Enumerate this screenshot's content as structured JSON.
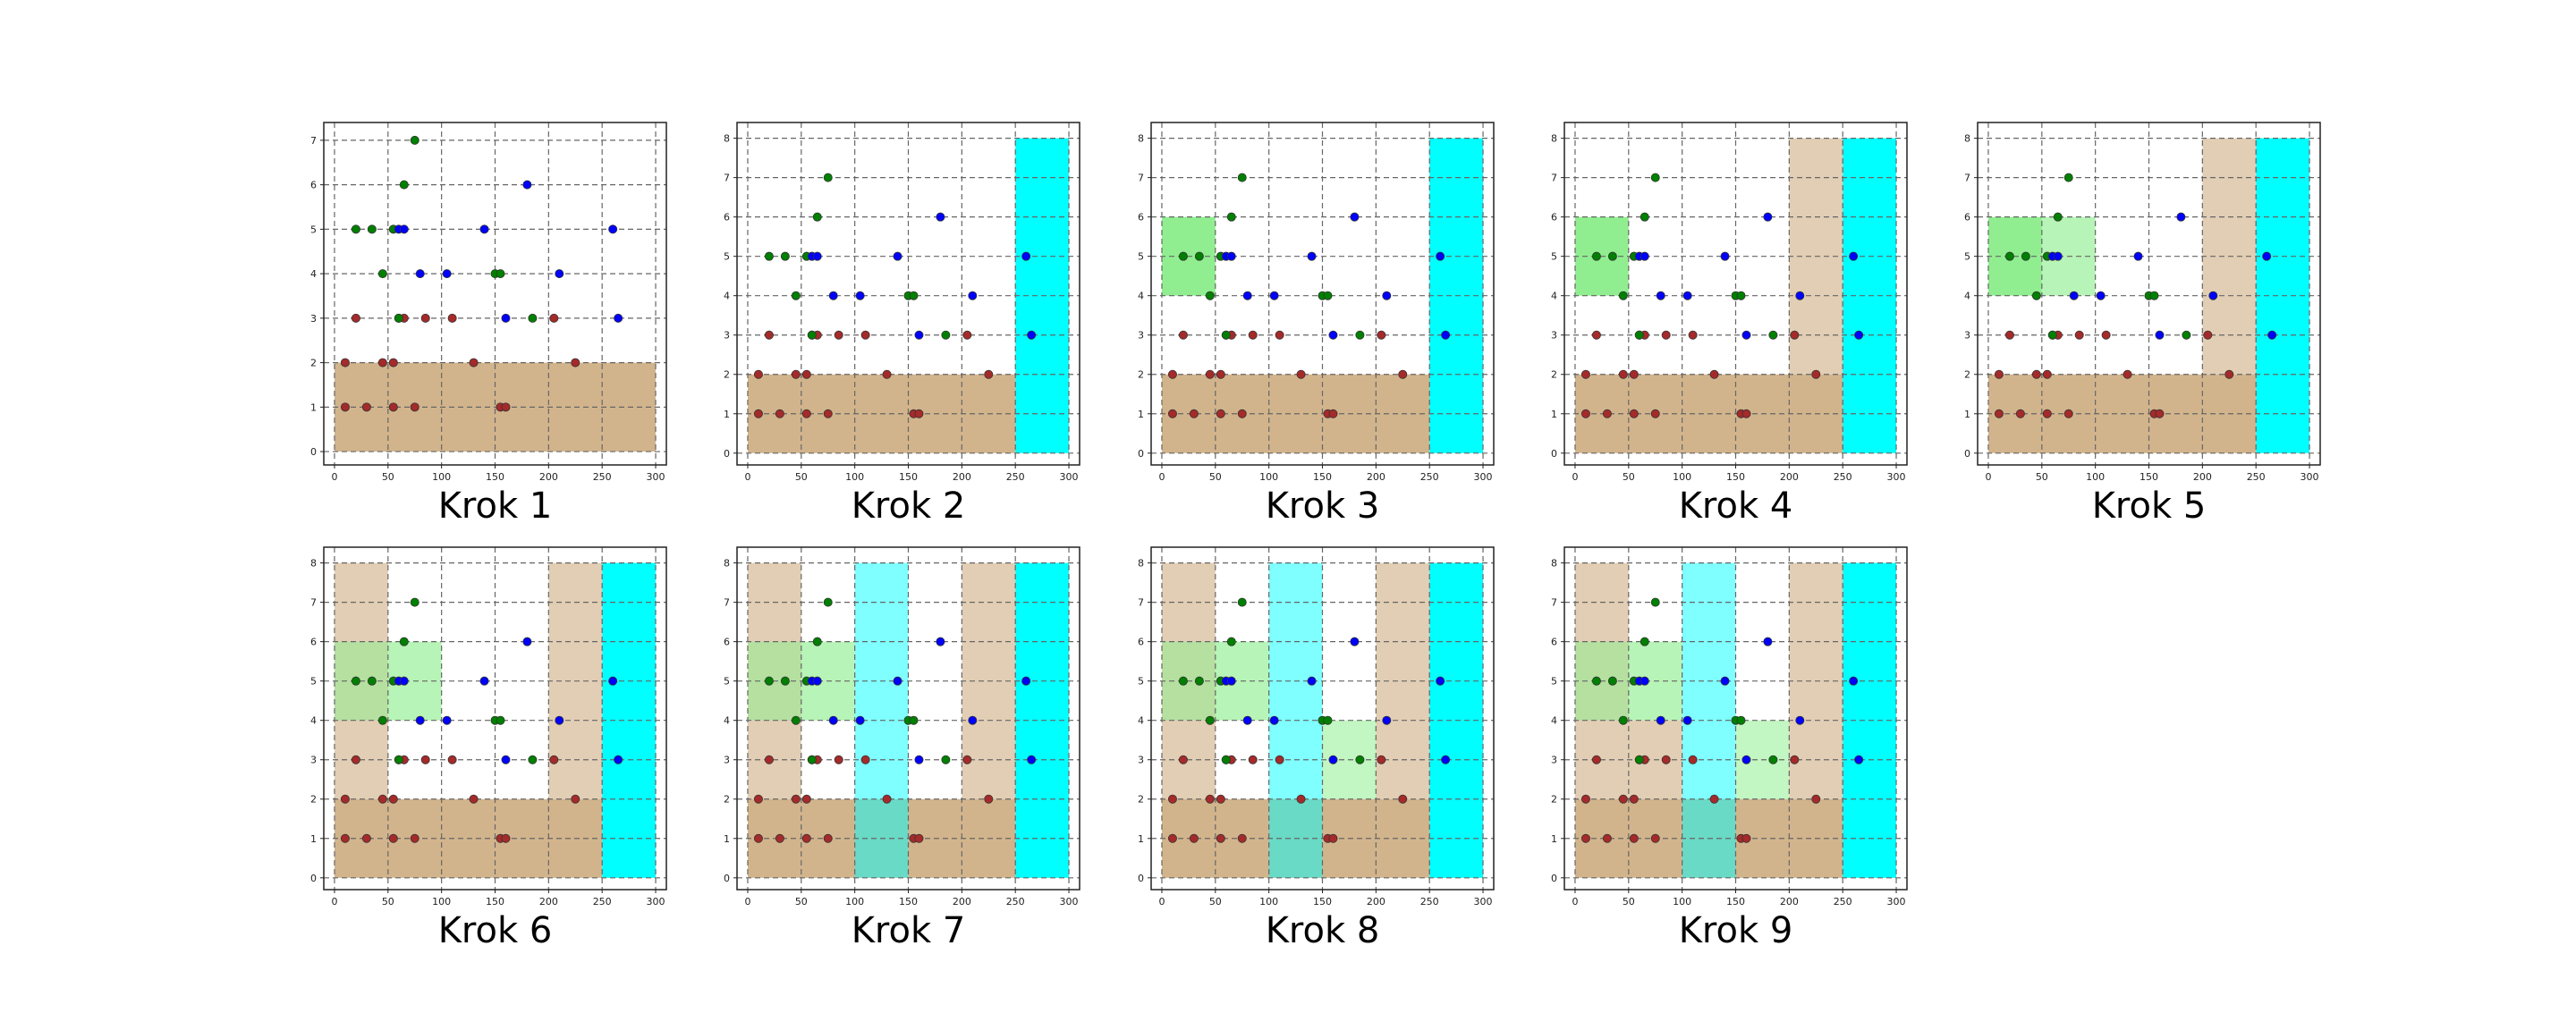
{
  "colors": {
    "region_tan": "#d2b48c",
    "region_green": "#90ee90",
    "region_cyan": "#00ffff",
    "point_red": "#a52a2a",
    "point_green": "#008000",
    "point_blue": "#0000ff",
    "grid": "#666666"
  },
  "points": {
    "red": [
      [
        10,
        1
      ],
      [
        30,
        1
      ],
      [
        55,
        1
      ],
      [
        75,
        1
      ],
      [
        155,
        1
      ],
      [
        160,
        1
      ],
      [
        10,
        2
      ],
      [
        45,
        2
      ],
      [
        55,
        2
      ],
      [
        130,
        2
      ],
      [
        225,
        2
      ],
      [
        20,
        3
      ],
      [
        60,
        3
      ],
      [
        65,
        3
      ],
      [
        85,
        3
      ],
      [
        110,
        3
      ],
      [
        205,
        3
      ]
    ],
    "green": [
      [
        75,
        7
      ],
      [
        65,
        6
      ],
      [
        20,
        5
      ],
      [
        35,
        5
      ],
      [
        55,
        5
      ],
      [
        45,
        4
      ],
      [
        150,
        4
      ],
      [
        155,
        4
      ],
      [
        60,
        3
      ],
      [
        185,
        3
      ]
    ],
    "blue": [
      [
        180,
        6
      ],
      [
        140,
        5
      ],
      [
        60,
        5
      ],
      [
        65,
        5
      ],
      [
        260,
        5
      ],
      [
        80,
        4
      ],
      [
        105,
        4
      ],
      [
        210,
        4
      ],
      [
        160,
        3
      ],
      [
        265,
        3
      ]
    ]
  },
  "chart_data": [
    {
      "type": "scatter",
      "title": "Krok 1",
      "xlim": [
        -10,
        310
      ],
      "ylim": [
        -0.3,
        7.4
      ],
      "xticks": [
        0,
        50,
        100,
        150,
        200,
        250,
        300
      ],
      "yticks": [
        0,
        1,
        2,
        3,
        4,
        5,
        6,
        7
      ],
      "grid": true,
      "regions": [
        {
          "x": [
            0,
            300
          ],
          "y": [
            0,
            2
          ],
          "color": "#d2b48c",
          "opacity": 1
        }
      ]
    },
    {
      "type": "scatter",
      "title": "Krok 2",
      "xlim": [
        -10,
        310
      ],
      "ylim": [
        -0.3,
        8.4
      ],
      "xticks": [
        0,
        50,
        100,
        150,
        200,
        250,
        300
      ],
      "yticks": [
        0,
        1,
        2,
        3,
        4,
        5,
        6,
        7,
        8
      ],
      "grid": true,
      "regions": [
        {
          "x": [
            0,
            250
          ],
          "y": [
            0,
            2
          ],
          "color": "#d2b48c",
          "opacity": 1
        },
        {
          "x": [
            250,
            300
          ],
          "y": [
            0,
            8
          ],
          "color": "#00ffff",
          "opacity": 1
        }
      ]
    },
    {
      "type": "scatter",
      "title": "Krok 3",
      "xlim": [
        -10,
        310
      ],
      "ylim": [
        -0.3,
        8.4
      ],
      "xticks": [
        0,
        50,
        100,
        150,
        200,
        250,
        300
      ],
      "yticks": [
        0,
        1,
        2,
        3,
        4,
        5,
        6,
        7,
        8
      ],
      "grid": true,
      "regions": [
        {
          "x": [
            0,
            250
          ],
          "y": [
            0,
            2
          ],
          "color": "#d2b48c",
          "opacity": 1
        },
        {
          "x": [
            250,
            300
          ],
          "y": [
            0,
            8
          ],
          "color": "#00ffff",
          "opacity": 1
        },
        {
          "x": [
            0,
            50
          ],
          "y": [
            4,
            6
          ],
          "color": "#90ee90",
          "opacity": 1
        }
      ]
    },
    {
      "type": "scatter",
      "title": "Krok 4",
      "xlim": [
        -10,
        310
      ],
      "ylim": [
        -0.3,
        8.4
      ],
      "xticks": [
        0,
        50,
        100,
        150,
        200,
        250,
        300
      ],
      "yticks": [
        0,
        1,
        2,
        3,
        4,
        5,
        6,
        7,
        8
      ],
      "grid": true,
      "regions": [
        {
          "x": [
            0,
            250
          ],
          "y": [
            0,
            2
          ],
          "color": "#d2b48c",
          "opacity": 1
        },
        {
          "x": [
            250,
            300
          ],
          "y": [
            0,
            8
          ],
          "color": "#00ffff",
          "opacity": 1
        },
        {
          "x": [
            0,
            50
          ],
          "y": [
            4,
            6
          ],
          "color": "#90ee90",
          "opacity": 1
        },
        {
          "x": [
            200,
            250
          ],
          "y": [
            2,
            8
          ],
          "color": "#d2b48c",
          "opacity": 0.65
        }
      ]
    },
    {
      "type": "scatter",
      "title": "Krok 5",
      "xlim": [
        -10,
        310
      ],
      "ylim": [
        -0.3,
        8.4
      ],
      "xticks": [
        0,
        50,
        100,
        150,
        200,
        250,
        300
      ],
      "yticks": [
        0,
        1,
        2,
        3,
        4,
        5,
        6,
        7,
        8
      ],
      "grid": true,
      "regions": [
        {
          "x": [
            0,
            250
          ],
          "y": [
            0,
            2
          ],
          "color": "#d2b48c",
          "opacity": 1
        },
        {
          "x": [
            250,
            300
          ],
          "y": [
            0,
            8
          ],
          "color": "#00ffff",
          "opacity": 1
        },
        {
          "x": [
            0,
            50
          ],
          "y": [
            4,
            6
          ],
          "color": "#90ee90",
          "opacity": 1
        },
        {
          "x": [
            200,
            250
          ],
          "y": [
            2,
            8
          ],
          "color": "#d2b48c",
          "opacity": 0.65
        },
        {
          "x": [
            50,
            100
          ],
          "y": [
            4,
            6
          ],
          "color": "#90ee90",
          "opacity": 0.65
        }
      ]
    },
    {
      "type": "scatter",
      "title": "Krok 6",
      "xlim": [
        -10,
        310
      ],
      "ylim": [
        -0.3,
        8.4
      ],
      "xticks": [
        0,
        50,
        100,
        150,
        200,
        250,
        300
      ],
      "yticks": [
        0,
        1,
        2,
        3,
        4,
        5,
        6,
        7,
        8
      ],
      "grid": true,
      "regions": [
        {
          "x": [
            0,
            250
          ],
          "y": [
            0,
            2
          ],
          "color": "#d2b48c",
          "opacity": 1
        },
        {
          "x": [
            250,
            300
          ],
          "y": [
            0,
            8
          ],
          "color": "#00ffff",
          "opacity": 1
        },
        {
          "x": [
            200,
            250
          ],
          "y": [
            2,
            8
          ],
          "color": "#d2b48c",
          "opacity": 0.65
        },
        {
          "x": [
            50,
            100
          ],
          "y": [
            4,
            6
          ],
          "color": "#90ee90",
          "opacity": 0.65
        },
        {
          "x": [
            0,
            50
          ],
          "y": [
            2,
            8
          ],
          "color": "#d2b48c",
          "opacity": 0.65
        },
        {
          "x": [
            0,
            50
          ],
          "y": [
            4,
            6
          ],
          "color": "#90ee90",
          "opacity": 0.55
        }
      ]
    },
    {
      "type": "scatter",
      "title": "Krok 7",
      "xlim": [
        -10,
        310
      ],
      "ylim": [
        -0.3,
        8.4
      ],
      "xticks": [
        0,
        50,
        100,
        150,
        200,
        250,
        300
      ],
      "yticks": [
        0,
        1,
        2,
        3,
        4,
        5,
        6,
        7,
        8
      ],
      "grid": true,
      "regions": [
        {
          "x": [
            0,
            250
          ],
          "y": [
            0,
            2
          ],
          "color": "#d2b48c",
          "opacity": 1
        },
        {
          "x": [
            250,
            300
          ],
          "y": [
            0,
            8
          ],
          "color": "#00ffff",
          "opacity": 1
        },
        {
          "x": [
            200,
            250
          ],
          "y": [
            2,
            8
          ],
          "color": "#d2b48c",
          "opacity": 0.65
        },
        {
          "x": [
            50,
            100
          ],
          "y": [
            4,
            6
          ],
          "color": "#90ee90",
          "opacity": 0.65
        },
        {
          "x": [
            0,
            50
          ],
          "y": [
            2,
            8
          ],
          "color": "#d2b48c",
          "opacity": 0.65
        },
        {
          "x": [
            0,
            50
          ],
          "y": [
            4,
            6
          ],
          "color": "#90ee90",
          "opacity": 0.55
        },
        {
          "x": [
            100,
            150
          ],
          "y": [
            0,
            8
          ],
          "color": "#00ffff",
          "opacity": 0.5
        }
      ]
    },
    {
      "type": "scatter",
      "title": "Krok 8",
      "xlim": [
        -10,
        310
      ],
      "ylim": [
        -0.3,
        8.4
      ],
      "xticks": [
        0,
        50,
        100,
        150,
        200,
        250,
        300
      ],
      "yticks": [
        0,
        1,
        2,
        3,
        4,
        5,
        6,
        7,
        8
      ],
      "grid": true,
      "regions": [
        {
          "x": [
            0,
            250
          ],
          "y": [
            0,
            2
          ],
          "color": "#d2b48c",
          "opacity": 1
        },
        {
          "x": [
            250,
            300
          ],
          "y": [
            0,
            8
          ],
          "color": "#00ffff",
          "opacity": 1
        },
        {
          "x": [
            200,
            250
          ],
          "y": [
            2,
            8
          ],
          "color": "#d2b48c",
          "opacity": 0.65
        },
        {
          "x": [
            50,
            100
          ],
          "y": [
            4,
            6
          ],
          "color": "#90ee90",
          "opacity": 0.65
        },
        {
          "x": [
            0,
            50
          ],
          "y": [
            2,
            8
          ],
          "color": "#d2b48c",
          "opacity": 0.65
        },
        {
          "x": [
            0,
            50
          ],
          "y": [
            4,
            6
          ],
          "color": "#90ee90",
          "opacity": 0.55
        },
        {
          "x": [
            100,
            150
          ],
          "y": [
            0,
            8
          ],
          "color": "#00ffff",
          "opacity": 0.5
        },
        {
          "x": [
            150,
            200
          ],
          "y": [
            2,
            4
          ],
          "color": "#90ee90",
          "opacity": 0.55
        }
      ]
    },
    {
      "type": "scatter",
      "title": "Krok 9",
      "xlim": [
        -10,
        310
      ],
      "ylim": [
        -0.3,
        8.4
      ],
      "xticks": [
        0,
        50,
        100,
        150,
        200,
        250,
        300
      ],
      "yticks": [
        0,
        1,
        2,
        3,
        4,
        5,
        6,
        7,
        8
      ],
      "grid": true,
      "regions": [
        {
          "x": [
            0,
            250
          ],
          "y": [
            0,
            2
          ],
          "color": "#d2b48c",
          "opacity": 1
        },
        {
          "x": [
            250,
            300
          ],
          "y": [
            0,
            8
          ],
          "color": "#00ffff",
          "opacity": 1
        },
        {
          "x": [
            200,
            250
          ],
          "y": [
            2,
            8
          ],
          "color": "#d2b48c",
          "opacity": 0.65
        },
        {
          "x": [
            50,
            100
          ],
          "y": [
            4,
            6
          ],
          "color": "#90ee90",
          "opacity": 0.65
        },
        {
          "x": [
            0,
            50
          ],
          "y": [
            2,
            8
          ],
          "color": "#d2b48c",
          "opacity": 0.65
        },
        {
          "x": [
            0,
            50
          ],
          "y": [
            4,
            6
          ],
          "color": "#90ee90",
          "opacity": 0.55
        },
        {
          "x": [
            100,
            150
          ],
          "y": [
            0,
            8
          ],
          "color": "#00ffff",
          "opacity": 0.5
        },
        {
          "x": [
            150,
            200
          ],
          "y": [
            2,
            4
          ],
          "color": "#90ee90",
          "opacity": 0.55
        },
        {
          "x": [
            50,
            100
          ],
          "y": [
            2,
            4
          ],
          "color": "#d2b48c",
          "opacity": 0.65
        }
      ]
    }
  ]
}
